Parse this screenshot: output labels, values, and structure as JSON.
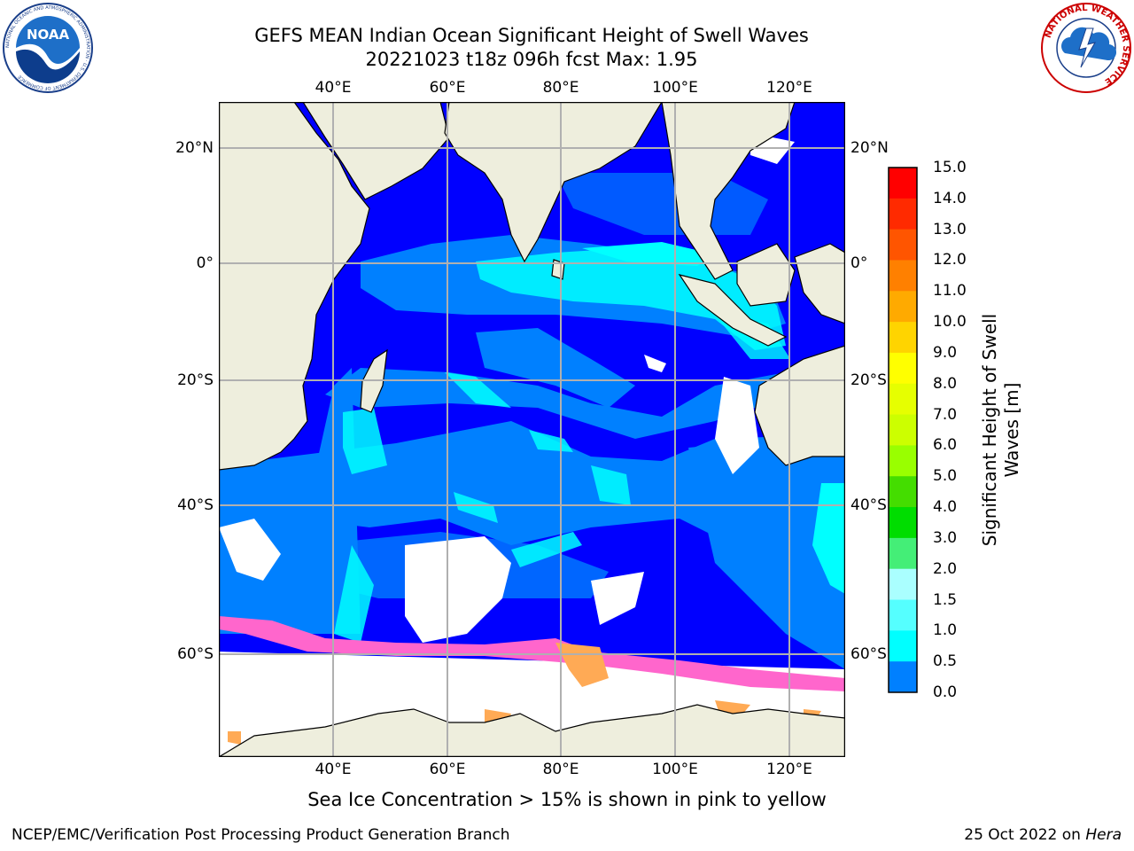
{
  "header": {
    "title_line1": "GEFS MEAN Indian Ocean Significant Height of Swell Waves",
    "title_line2": "20221023 t18z 096h fcst   Max: 1.95"
  },
  "logos": {
    "left": {
      "text": "NOAA",
      "ring_text": "NATIONAL OCEANIC AND ATMOSPHERIC ADMINISTRATION · U.S. DEPARTMENT OF COMMERCE"
    },
    "right": {
      "ring_text": "NATIONAL WEATHER SERVICE"
    }
  },
  "map": {
    "lon_ticks": [
      "40°E",
      "60°E",
      "80°E",
      "100°E",
      "120°E"
    ],
    "lat_ticks": [
      "20°N",
      "0°",
      "20°S",
      "40°S",
      "60°S"
    ],
    "colors": {
      "land": "#eeeedd",
      "ocean_0": "#0000ff",
      "ocean_05": "#0080ff",
      "ocean_1": "#00ffff",
      "ice_pink": "#ff66cc",
      "ice_orange": "#ffaa55",
      "no_data": "#ffffff",
      "grid": "#b0b0b0"
    }
  },
  "colorbar": {
    "title_line1": "Significant Height of Swell",
    "title_line2": "Waves [m]",
    "labels": [
      "15.0",
      "14.0",
      "13.0",
      "12.0",
      "11.0",
      "10.0",
      "9.0",
      "8.0",
      "7.0",
      "6.0",
      "5.0",
      "4.0",
      "3.0",
      "2.0",
      "1.5",
      "1.0",
      "0.5",
      "0.0"
    ],
    "colors": [
      "#ff0000",
      "#ff2a00",
      "#ff5500",
      "#ff8000",
      "#ffaa00",
      "#ffd400",
      "#ffff00",
      "#e6ff00",
      "#ccff00",
      "#99ff00",
      "#44dd00",
      "#00dd00",
      "#44ee77",
      "#aaffff",
      "#55ffff",
      "#00ffff",
      "#0080ff",
      "#0000ff"
    ]
  },
  "caption": "Sea Ice Concentration > 15% is shown in pink to yellow",
  "footer": {
    "left": "NCEP/EMC/Verification Post Processing Product Generation Branch",
    "right_date": "25 Oct 2022 on",
    "right_host": "Hera"
  }
}
